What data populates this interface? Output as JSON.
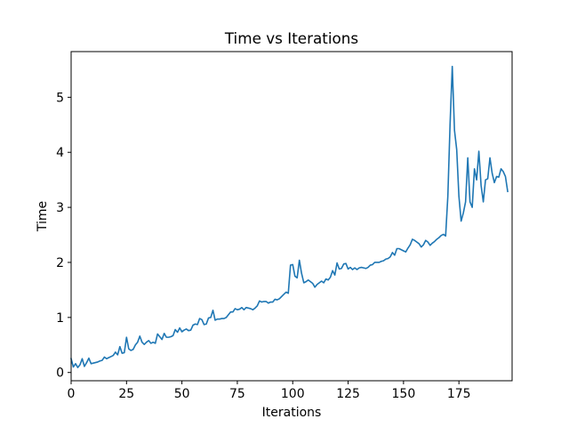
{
  "chart_data": {
    "type": "line",
    "title": "Time vs Iterations",
    "xlabel": "Iterations",
    "ylabel": "Time",
    "xlim": [
      0,
      199
    ],
    "ylim": [
      -0.15,
      5.83
    ],
    "xticks": [
      0,
      25,
      50,
      75,
      100,
      125,
      150,
      175
    ],
    "yticks": [
      0,
      1,
      2,
      3,
      4,
      5
    ],
    "grid": false,
    "color": "#1f77b4",
    "series": [
      {
        "y": [
          0.25,
          0.1,
          0.16,
          0.09,
          0.14,
          0.25,
          0.11,
          0.18,
          0.26,
          0.16,
          0.17,
          0.18,
          0.19,
          0.21,
          0.22,
          0.28,
          0.25,
          0.27,
          0.29,
          0.31,
          0.37,
          0.32,
          0.47,
          0.35,
          0.36,
          0.64,
          0.43,
          0.4,
          0.42,
          0.5,
          0.55,
          0.66,
          0.55,
          0.51,
          0.55,
          0.58,
          0.53,
          0.55,
          0.53,
          0.7,
          0.65,
          0.6,
          0.71,
          0.64,
          0.64,
          0.65,
          0.67,
          0.78,
          0.73,
          0.81,
          0.74,
          0.77,
          0.79,
          0.76,
          0.77,
          0.86,
          0.88,
          0.87,
          0.98,
          0.96,
          0.87,
          0.88,
          0.99,
          1.0,
          1.13,
          0.95,
          0.97,
          0.97,
          0.98,
          0.98,
          1.0,
          1.05,
          1.1,
          1.1,
          1.16,
          1.14,
          1.15,
          1.18,
          1.14,
          1.18,
          1.17,
          1.16,
          1.14,
          1.17,
          1.21,
          1.3,
          1.28,
          1.29,
          1.29,
          1.26,
          1.28,
          1.28,
          1.33,
          1.32,
          1.34,
          1.38,
          1.42,
          1.46,
          1.44,
          1.95,
          1.96,
          1.75,
          1.72,
          2.04,
          1.8,
          1.63,
          1.65,
          1.68,
          1.65,
          1.62,
          1.55,
          1.6,
          1.63,
          1.66,
          1.63,
          1.7,
          1.68,
          1.73,
          1.85,
          1.77,
          1.99,
          1.88,
          1.89,
          1.97,
          1.98,
          1.88,
          1.91,
          1.87,
          1.9,
          1.87,
          1.9,
          1.91,
          1.9,
          1.89,
          1.91,
          1.95,
          1.96,
          2.0,
          2.0,
          2.0,
          2.02,
          2.03,
          2.06,
          2.07,
          2.1,
          2.18,
          2.13,
          2.25,
          2.25,
          2.23,
          2.21,
          2.19,
          2.26,
          2.32,
          2.42,
          2.4,
          2.37,
          2.34,
          2.28,
          2.32,
          2.4,
          2.37,
          2.31,
          2.35,
          2.38,
          2.42,
          2.45,
          2.49,
          2.51,
          2.48,
          3.2,
          4.5,
          5.56,
          4.4,
          4.05,
          3.2,
          2.75,
          2.9,
          3.1,
          3.9,
          3.1,
          3.0,
          3.7,
          3.5,
          4.02,
          3.4,
          3.1,
          3.5,
          3.52,
          3.9,
          3.62,
          3.45,
          3.56,
          3.55,
          3.7,
          3.65,
          3.56,
          3.29
        ]
      }
    ]
  }
}
